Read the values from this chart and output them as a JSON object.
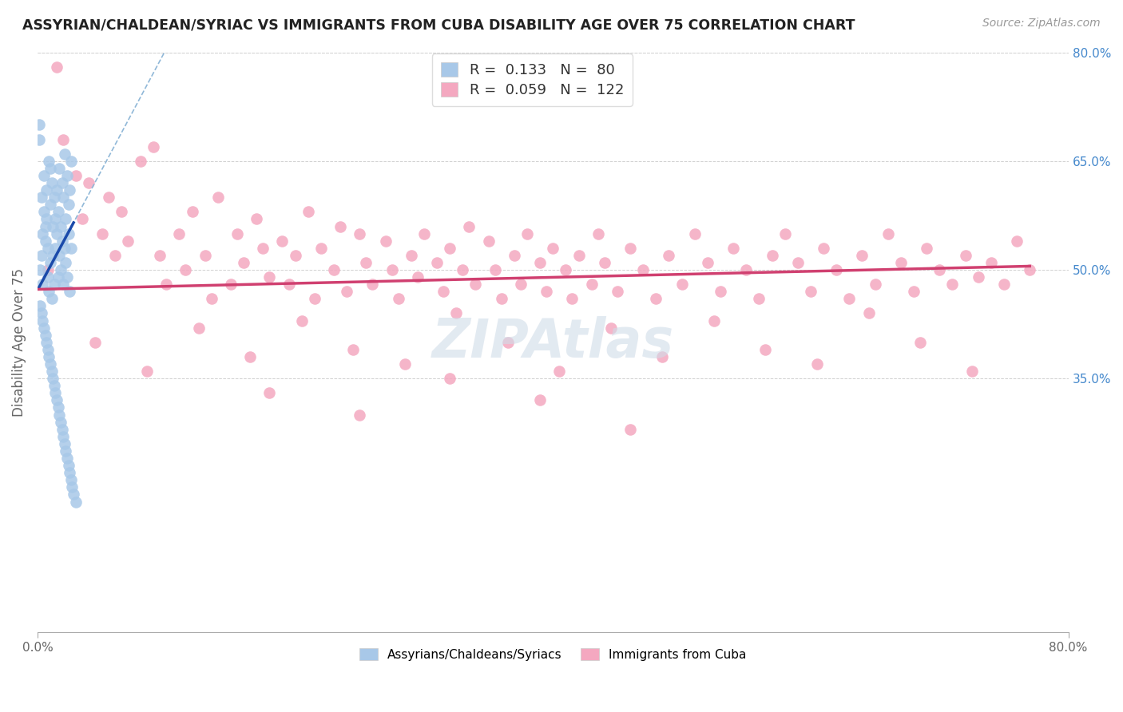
{
  "title": "ASSYRIAN/CHALDEAN/SYRIAC VS IMMIGRANTS FROM CUBA DISABILITY AGE OVER 75 CORRELATION CHART",
  "source": "Source: ZipAtlas.com",
  "ylabel": "Disability Age Over 75",
  "xlim": [
    0.0,
    0.8
  ],
  "ylim": [
    0.0,
    0.8
  ],
  "ytick_labels_right": [
    "80.0%",
    "65.0%",
    "50.0%",
    "35.0%"
  ],
  "ytick_positions_right": [
    0.8,
    0.65,
    0.5,
    0.35
  ],
  "grid_hlines": [
    0.8,
    0.65,
    0.5,
    0.35
  ],
  "blue_color": "#a8c8e8",
  "pink_color": "#f4a8c0",
  "blue_line_color": "#1a4aaa",
  "pink_line_color": "#d04070",
  "dashed_line_color": "#90b8d8",
  "R_blue": 0.133,
  "N_blue": 80,
  "R_pink": 0.059,
  "N_pink": 122,
  "blue_scatter_x": [
    0.002,
    0.003,
    0.003,
    0.004,
    0.004,
    0.005,
    0.005,
    0.006,
    0.006,
    0.007,
    0.007,
    0.008,
    0.008,
    0.009,
    0.009,
    0.01,
    0.01,
    0.01,
    0.011,
    0.011,
    0.012,
    0.012,
    0.013,
    0.013,
    0.014,
    0.014,
    0.015,
    0.015,
    0.016,
    0.016,
    0.017,
    0.017,
    0.018,
    0.018,
    0.019,
    0.019,
    0.02,
    0.02,
    0.021,
    0.021,
    0.022,
    0.022,
    0.023,
    0.023,
    0.024,
    0.024,
    0.025,
    0.025,
    0.026,
    0.026,
    0.001,
    0.001,
    0.002,
    0.003,
    0.004,
    0.005,
    0.006,
    0.007,
    0.008,
    0.009,
    0.01,
    0.011,
    0.012,
    0.013,
    0.014,
    0.015,
    0.016,
    0.017,
    0.018,
    0.019,
    0.02,
    0.021,
    0.022,
    0.023,
    0.024,
    0.025,
    0.026,
    0.027,
    0.028,
    0.03
  ],
  "blue_scatter_y": [
    0.5,
    0.52,
    0.6,
    0.55,
    0.48,
    0.63,
    0.58,
    0.56,
    0.54,
    0.61,
    0.57,
    0.49,
    0.53,
    0.65,
    0.47,
    0.59,
    0.51,
    0.64,
    0.62,
    0.46,
    0.56,
    0.52,
    0.6,
    0.48,
    0.57,
    0.53,
    0.55,
    0.61,
    0.49,
    0.58,
    0.52,
    0.64,
    0.5,
    0.56,
    0.54,
    0.62,
    0.48,
    0.6,
    0.53,
    0.66,
    0.51,
    0.57,
    0.49,
    0.63,
    0.55,
    0.59,
    0.47,
    0.61,
    0.53,
    0.65,
    0.7,
    0.68,
    0.45,
    0.44,
    0.43,
    0.42,
    0.41,
    0.4,
    0.39,
    0.38,
    0.37,
    0.36,
    0.35,
    0.34,
    0.33,
    0.32,
    0.31,
    0.3,
    0.29,
    0.28,
    0.27,
    0.26,
    0.25,
    0.24,
    0.23,
    0.22,
    0.21,
    0.2,
    0.19,
    0.18
  ],
  "pink_scatter_x": [
    0.008,
    0.015,
    0.02,
    0.03,
    0.035,
    0.04,
    0.05,
    0.055,
    0.06,
    0.065,
    0.07,
    0.08,
    0.09,
    0.095,
    0.1,
    0.11,
    0.115,
    0.12,
    0.13,
    0.135,
    0.14,
    0.15,
    0.155,
    0.16,
    0.17,
    0.175,
    0.18,
    0.19,
    0.195,
    0.2,
    0.21,
    0.215,
    0.22,
    0.23,
    0.235,
    0.24,
    0.25,
    0.255,
    0.26,
    0.27,
    0.275,
    0.28,
    0.29,
    0.295,
    0.3,
    0.31,
    0.315,
    0.32,
    0.33,
    0.335,
    0.34,
    0.35,
    0.355,
    0.36,
    0.37,
    0.375,
    0.38,
    0.39,
    0.395,
    0.4,
    0.41,
    0.415,
    0.42,
    0.43,
    0.435,
    0.44,
    0.45,
    0.46,
    0.47,
    0.48,
    0.49,
    0.5,
    0.51,
    0.52,
    0.53,
    0.54,
    0.55,
    0.56,
    0.57,
    0.58,
    0.59,
    0.6,
    0.61,
    0.62,
    0.63,
    0.64,
    0.65,
    0.66,
    0.67,
    0.68,
    0.69,
    0.7,
    0.71,
    0.72,
    0.73,
    0.74,
    0.75,
    0.76,
    0.77,
    0.045,
    0.085,
    0.125,
    0.165,
    0.205,
    0.245,
    0.285,
    0.325,
    0.365,
    0.405,
    0.445,
    0.485,
    0.525,
    0.565,
    0.605,
    0.645,
    0.685,
    0.725,
    0.18,
    0.25,
    0.32,
    0.39,
    0.46
  ],
  "pink_scatter_y": [
    0.5,
    0.78,
    0.68,
    0.63,
    0.57,
    0.62,
    0.55,
    0.6,
    0.52,
    0.58,
    0.54,
    0.65,
    0.67,
    0.52,
    0.48,
    0.55,
    0.5,
    0.58,
    0.52,
    0.46,
    0.6,
    0.48,
    0.55,
    0.51,
    0.57,
    0.53,
    0.49,
    0.54,
    0.48,
    0.52,
    0.58,
    0.46,
    0.53,
    0.5,
    0.56,
    0.47,
    0.55,
    0.51,
    0.48,
    0.54,
    0.5,
    0.46,
    0.52,
    0.49,
    0.55,
    0.51,
    0.47,
    0.53,
    0.5,
    0.56,
    0.48,
    0.54,
    0.5,
    0.46,
    0.52,
    0.48,
    0.55,
    0.51,
    0.47,
    0.53,
    0.5,
    0.46,
    0.52,
    0.48,
    0.55,
    0.51,
    0.47,
    0.53,
    0.5,
    0.46,
    0.52,
    0.48,
    0.55,
    0.51,
    0.47,
    0.53,
    0.5,
    0.46,
    0.52,
    0.55,
    0.51,
    0.47,
    0.53,
    0.5,
    0.46,
    0.52,
    0.48,
    0.55,
    0.51,
    0.47,
    0.53,
    0.5,
    0.48,
    0.52,
    0.49,
    0.51,
    0.48,
    0.54,
    0.5,
    0.4,
    0.36,
    0.42,
    0.38,
    0.43,
    0.39,
    0.37,
    0.44,
    0.4,
    0.36,
    0.42,
    0.38,
    0.43,
    0.39,
    0.37,
    0.44,
    0.4,
    0.36,
    0.33,
    0.3,
    0.35,
    0.32,
    0.28
  ]
}
